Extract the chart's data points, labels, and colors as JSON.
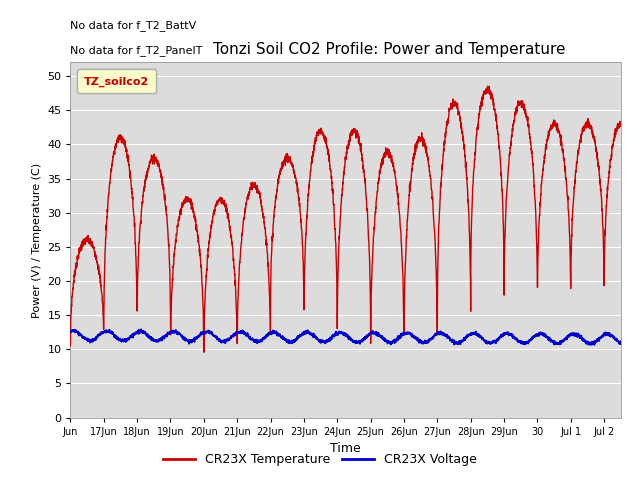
{
  "title": "Tonzi Soil CO2 Profile: Power and Temperature",
  "ylabel": "Power (V) / Temperature (C)",
  "xlabel": "Time",
  "note_line1": "No data for f_T2_BattV",
  "note_line2": "No data for f_T2_PanelT",
  "legend_label": "TZ_soilco2",
  "ylim": [
    0,
    52
  ],
  "yticks": [
    0,
    5,
    10,
    15,
    20,
    25,
    30,
    35,
    40,
    45,
    50
  ],
  "bg_color": "#dcdcdc",
  "temp_color": "#cc0000",
  "volt_color": "#0000cc",
  "legend1": "CR23X Temperature",
  "legend2": "CR23X Voltage",
  "x_tick_labels": [
    "Jun",
    "17Jun",
    "18Jun",
    "19Jun",
    "20Jun",
    "21Jun",
    "22Jun",
    "23Jun",
    "24Jun",
    "25Jun",
    "26Jun",
    "27Jun",
    "28Jun",
    "29Jun",
    "30",
    "Jul 1",
    "Jul 2"
  ],
  "x_tick_pos": [
    0,
    1,
    2,
    3,
    4,
    5,
    6,
    7,
    8,
    9,
    10,
    11,
    12,
    13,
    14,
    15,
    16
  ],
  "xlim": [
    0,
    16.5
  ],
  "figsize": [
    6.4,
    4.8
  ],
  "dpi": 100,
  "peak_amplitudes": [
    26,
    41,
    38,
    32,
    32,
    34,
    38,
    42,
    42,
    39,
    41,
    46,
    48,
    46,
    43,
    43
  ],
  "min_temps": [
    10,
    11,
    13,
    8,
    7,
    8,
    15,
    11,
    10,
    8,
    8,
    13,
    18,
    15,
    15,
    17
  ],
  "volt_base": 12.0,
  "volt_amp": 0.7
}
